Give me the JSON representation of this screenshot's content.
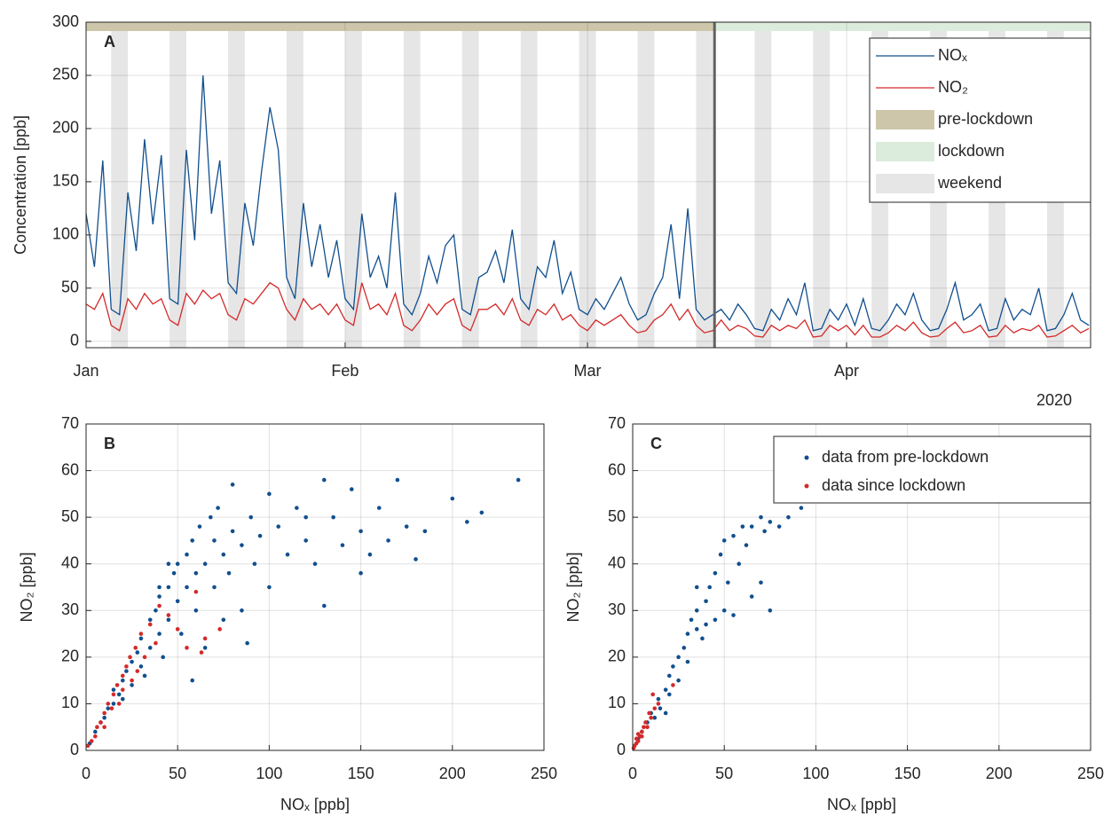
{
  "chart_data": [
    {
      "type": "line",
      "label": "A",
      "ylabel": "Concentration [ppb]",
      "annotation": "2020",
      "xlim": [
        0,
        120.2
      ],
      "ylim": [
        -6,
        300
      ],
      "xticks": [
        {
          "value": 0,
          "label": "Jan"
        },
        {
          "value": 31,
          "label": "Feb"
        },
        {
          "value": 60,
          "label": "Mar"
        },
        {
          "value": 91,
          "label": "Apr"
        }
      ],
      "yticks": [
        0,
        50,
        100,
        150,
        200,
        250,
        300
      ],
      "grid": true,
      "x": [
        0,
        1,
        2,
        3,
        4,
        5,
        6,
        7,
        8,
        9,
        10,
        11,
        12,
        13,
        14,
        15,
        16,
        17,
        18,
        19,
        20,
        21,
        22,
        23,
        24,
        25,
        26,
        27,
        28,
        29,
        30,
        31,
        32,
        33,
        34,
        35,
        36,
        37,
        38,
        39,
        40,
        41,
        42,
        43,
        44,
        45,
        46,
        47,
        48,
        49,
        50,
        51,
        52,
        53,
        54,
        55,
        56,
        57,
        58,
        59,
        60,
        61,
        62,
        63,
        64,
        65,
        66,
        67,
        68,
        69,
        70,
        71,
        72,
        73,
        74,
        75,
        76,
        77,
        78,
        79,
        80,
        81,
        82,
        83,
        84,
        85,
        86,
        87,
        88,
        89,
        90,
        91,
        92,
        93,
        94,
        95,
        96,
        97,
        98,
        99,
        100,
        101,
        102,
        103,
        104,
        105,
        106,
        107,
        108,
        109,
        110,
        111,
        112,
        113,
        114,
        115,
        116,
        117,
        118,
        119,
        120
      ],
      "series": [
        {
          "name": "NOₓ",
          "color": "#114f8e",
          "values": [
            120,
            70,
            170,
            30,
            25,
            140,
            85,
            190,
            110,
            175,
            40,
            35,
            180,
            95,
            250,
            120,
            170,
            55,
            45,
            130,
            90,
            160,
            220,
            180,
            60,
            40,
            130,
            70,
            110,
            60,
            95,
            40,
            30,
            120,
            60,
            80,
            50,
            140,
            35,
            25,
            45,
            80,
            55,
            90,
            100,
            30,
            25,
            60,
            65,
            85,
            55,
            105,
            40,
            30,
            70,
            60,
            95,
            45,
            65,
            30,
            25,
            40,
            30,
            45,
            60,
            35,
            20,
            25,
            45,
            60,
            110,
            40,
            125,
            30,
            20,
            25,
            30,
            20,
            35,
            25,
            12,
            10,
            30,
            20,
            40,
            25,
            55,
            10,
            12,
            30,
            20,
            35,
            15,
            40,
            12,
            10,
            20,
            35,
            25,
            45,
            20,
            10,
            12,
            30,
            55,
            20,
            25,
            35,
            10,
            12,
            40,
            20,
            30,
            25,
            50,
            10,
            12,
            25,
            45,
            20,
            15
          ]
        },
        {
          "name": "NO₂",
          "color": "#d42a2a",
          "values": [
            35,
            30,
            45,
            15,
            10,
            40,
            30,
            45,
            35,
            40,
            20,
            15,
            45,
            35,
            48,
            40,
            45,
            25,
            20,
            40,
            35,
            45,
            55,
            50,
            30,
            20,
            40,
            30,
            35,
            25,
            35,
            20,
            15,
            55,
            30,
            35,
            25,
            45,
            15,
            10,
            20,
            35,
            25,
            35,
            40,
            15,
            10,
            30,
            30,
            35,
            25,
            40,
            20,
            15,
            30,
            25,
            35,
            20,
            25,
            15,
            10,
            20,
            15,
            20,
            25,
            15,
            8,
            10,
            20,
            25,
            35,
            20,
            30,
            15,
            8,
            10,
            20,
            10,
            15,
            12,
            5,
            4,
            15,
            10,
            15,
            12,
            20,
            4,
            5,
            15,
            10,
            15,
            6,
            15,
            4,
            4,
            8,
            15,
            10,
            18,
            8,
            4,
            5,
            12,
            18,
            8,
            10,
            15,
            4,
            5,
            15,
            8,
            12,
            10,
            15,
            4,
            5,
            10,
            15,
            8,
            12
          ]
        }
      ],
      "bands": [
        {
          "name": "pre-lockdown",
          "color": "#cdc6ab",
          "start": 0,
          "end": 75.2
        },
        {
          "name": "lockdown",
          "color": "#dcecdc",
          "start": 75.2,
          "end": 120.2
        }
      ],
      "weekends": {
        "name": "weekend",
        "color": "#e6e6e6",
        "spans": [
          [
            3,
            5
          ],
          [
            10,
            12
          ],
          [
            17,
            19
          ],
          [
            24,
            26
          ],
          [
            31,
            33
          ],
          [
            38,
            40
          ],
          [
            45,
            47
          ],
          [
            52,
            54
          ],
          [
            59,
            61
          ],
          [
            66,
            68
          ],
          [
            73,
            75
          ],
          [
            80,
            82
          ],
          [
            87,
            89
          ],
          [
            94,
            96
          ],
          [
            101,
            103
          ],
          [
            108,
            110
          ],
          [
            115,
            117
          ]
        ]
      }
    },
    {
      "type": "scatter",
      "label": "B",
      "xlabel": "NOₓ [ppb]",
      "ylabel": "NO₂ [ppb]",
      "xlim": [
        0,
        250
      ],
      "ylim": [
        0,
        70
      ],
      "xticks": [
        0,
        50,
        100,
        150,
        200,
        250
      ],
      "yticks": [
        0,
        10,
        20,
        30,
        40,
        50,
        60,
        70
      ],
      "grid": true,
      "series": [
        {
          "color": "#114f8e",
          "x": [
            2,
            5,
            8,
            10,
            12,
            15,
            15,
            18,
            20,
            20,
            22,
            25,
            25,
            28,
            30,
            30,
            32,
            35,
            35,
            38,
            40,
            40,
            42,
            45,
            45,
            48,
            50,
            50,
            52,
            55,
            55,
            58,
            60,
            60,
            62,
            65,
            68,
            70,
            70,
            72,
            75,
            78,
            80,
            80,
            85,
            85,
            90,
            92,
            95,
            100,
            100,
            105,
            110,
            115,
            120,
            125,
            130,
            135,
            140,
            145,
            150,
            155,
            160,
            165,
            170,
            175,
            180,
            185,
            200,
            208,
            216,
            236,
            130,
            88,
            150,
            120,
            75,
            65,
            58,
            45,
            40
          ],
          "values": [
            1.5,
            4,
            6,
            7,
            9,
            10,
            13,
            12,
            15,
            11,
            17,
            19,
            14,
            21,
            24,
            18,
            16,
            28,
            22,
            30,
            33,
            25,
            20,
            35,
            28,
            38,
            40,
            32,
            25,
            42,
            35,
            45,
            38,
            30,
            48,
            40,
            50,
            45,
            35,
            52,
            42,
            38,
            47,
            57,
            44,
            30,
            50,
            40,
            46,
            55,
            35,
            48,
            42,
            52,
            45,
            40,
            58,
            50,
            44,
            56,
            47,
            42,
            52,
            45,
            58,
            48,
            41,
            47,
            54,
            49,
            51,
            58,
            31,
            23,
            38,
            50,
            28,
            22,
            15,
            40,
            35
          ]
        },
        {
          "color": "#d42a2a",
          "x": [
            1,
            3,
            5,
            6,
            8,
            10,
            10,
            12,
            14,
            15,
            17,
            18,
            20,
            20,
            22,
            24,
            25,
            27,
            28,
            30,
            32,
            35,
            38,
            40,
            45,
            50,
            55,
            60,
            65,
            73,
            63
          ],
          "values": [
            1,
            2,
            3,
            5,
            6,
            8,
            5,
            10,
            9,
            12,
            14,
            10,
            16,
            13,
            18,
            20,
            15,
            22,
            17,
            25,
            20,
            27,
            23,
            31,
            29,
            26,
            22,
            34,
            24,
            26,
            21
          ]
        }
      ]
    },
    {
      "type": "scatter",
      "label": "C",
      "xlabel": "NOₓ [ppb]",
      "ylabel": "NO₂ [ppb]",
      "xlim": [
        0,
        250
      ],
      "ylim": [
        0,
        70
      ],
      "xticks": [
        0,
        50,
        100,
        150,
        200,
        250
      ],
      "yticks": [
        0,
        10,
        20,
        30,
        40,
        50,
        60,
        70
      ],
      "grid": true,
      "series": [
        {
          "name": "data from pre-lockdown",
          "color": "#114f8e",
          "x": [
            1,
            3,
            5,
            8,
            10,
            12,
            14,
            15,
            18,
            20,
            20,
            22,
            25,
            25,
            28,
            30,
            30,
            32,
            35,
            35,
            38,
            40,
            40,
            42,
            45,
            45,
            48,
            50,
            50,
            52,
            55,
            58,
            60,
            62,
            65,
            70,
            72,
            75,
            80,
            85,
            92,
            70,
            75,
            65,
            55,
            35,
            18
          ],
          "values": [
            1,
            2.5,
            4,
            6,
            8,
            7,
            11,
            9,
            13,
            16,
            12,
            18,
            20,
            15,
            22,
            25,
            19,
            28,
            26,
            30,
            24,
            32,
            27,
            35,
            38,
            28,
            42,
            45,
            30,
            36,
            46,
            40,
            48,
            44,
            48,
            50,
            47,
            49,
            48,
            50,
            52,
            36,
            30,
            33,
            29,
            35,
            8
          ]
        },
        {
          "name": "data since lockdown",
          "color": "#d42a2a",
          "x": [
            0.5,
            1,
            2,
            2,
            3,
            3,
            4,
            5,
            5,
            6,
            7,
            8,
            9,
            10,
            12,
            14,
            22,
            11
          ],
          "values": [
            0.5,
            1,
            1.5,
            2.5,
            2,
            3.5,
            3,
            4,
            3,
            5,
            6,
            5,
            8,
            7,
            9,
            10,
            14,
            12
          ]
        }
      ]
    }
  ]
}
